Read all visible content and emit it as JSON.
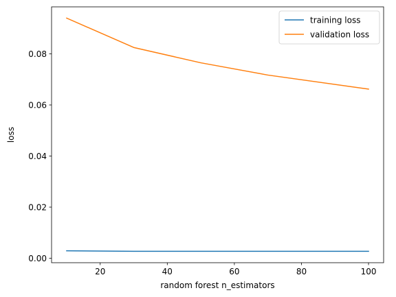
{
  "chart_data": {
    "type": "line",
    "xlabel": "random forest n_estimators",
    "ylabel": "loss",
    "xlim": [
      5.5,
      104.5
    ],
    "ylim": [
      -0.00175,
      0.0984
    ],
    "xticks": [
      20,
      40,
      60,
      80,
      100
    ],
    "xtick_labels": [
      "20",
      "40",
      "60",
      "80",
      "100"
    ],
    "yticks": [
      0.0,
      0.02,
      0.04,
      0.06,
      0.08
    ],
    "ytick_labels": [
      "0.00",
      "0.02",
      "0.04",
      "0.06",
      "0.08"
    ],
    "grid": false,
    "legend_position": "top-right",
    "x": [
      10,
      30,
      50,
      70,
      100
    ],
    "series": [
      {
        "name": "training loss",
        "color": "#1f77b4",
        "values": [
          0.0029,
          0.0027,
          0.0027,
          0.0027,
          0.0027
        ]
      },
      {
        "name": "validation loss",
        "color": "#ff7f0e",
        "values": [
          0.094,
          0.0825,
          0.0765,
          0.0717,
          0.0662
        ]
      }
    ]
  }
}
